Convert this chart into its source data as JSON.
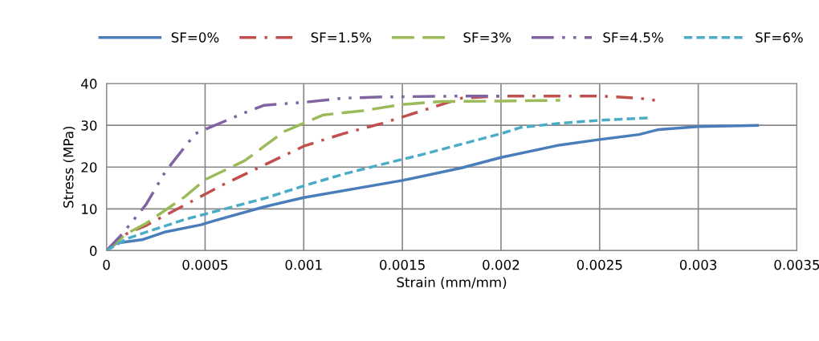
{
  "chart_data": {
    "type": "line",
    "xlabel": "Strain (mm/mm)",
    "ylabel": "Stress (MPa)",
    "xlim": [
      0,
      0.0035
    ],
    "xticks": [
      0,
      0.0005,
      0.001,
      0.0015,
      0.002,
      0.0025,
      0.003,
      0.0035
    ],
    "ylim": [
      0,
      40
    ],
    "yticks": [
      0,
      10,
      20,
      30,
      40
    ],
    "grid": true,
    "legend": "top",
    "marker": "none",
    "series": [
      {
        "name": "SF=0%",
        "color": "#4a7ebb",
        "line_style": "solid",
        "x": [
          0,
          5e-05,
          0.00018,
          0.0003,
          0.00048,
          0.00055,
          0.0008,
          0.001,
          0.0015,
          0.0018,
          0.002,
          0.0023,
          0.0025,
          0.0027,
          0.0028,
          0.003,
          0.0033
        ],
        "values": [
          0,
          1.8,
          2.6,
          4.5,
          6.2,
          7.2,
          10.5,
          12.7,
          16.8,
          19.8,
          22.3,
          25.3,
          26.6,
          27.8,
          29,
          29.7,
          30
        ]
      },
      {
        "name": "SF=1.5%",
        "color": "#c0504d",
        "line_style": "dashdot",
        "x": [
          0,
          0.0001,
          0.0002,
          0.0004,
          0.0006,
          0.0008,
          0.001,
          0.0012,
          0.0014,
          0.0016,
          0.0017,
          0.0018,
          0.002,
          0.0025,
          0.0027,
          0.00278
        ],
        "values": [
          0,
          4,
          6,
          11,
          16,
          20.5,
          25,
          28,
          30.5,
          33.5,
          35,
          36.5,
          37,
          37,
          36.5,
          36
        ]
      },
      {
        "name": "SF=3%",
        "color": "#9bbb59",
        "line_style": "longdash",
        "x": [
          0,
          0.0001,
          0.0002,
          0.0004,
          0.0005,
          0.0007,
          0.0008,
          0.0009,
          0.001,
          0.0011,
          0.0013,
          0.0015,
          0.0017,
          0.002,
          0.0023
        ],
        "values": [
          0,
          4,
          6.5,
          13,
          17,
          21.5,
          25,
          28.5,
          30.5,
          32.5,
          33.5,
          35,
          35.7,
          35.8,
          36
        ]
      },
      {
        "name": "SF=4.5%",
        "color": "#8064a2",
        "line_style": "dashdotdot",
        "x": [
          0,
          8e-05,
          0.0002,
          0.0003,
          0.0004,
          0.00045,
          0.0006,
          0.0007,
          0.0008,
          0.001,
          0.0012,
          0.0014,
          0.0018,
          0.002
        ],
        "values": [
          0,
          4,
          11,
          19,
          25,
          28,
          31,
          33,
          34.8,
          35.5,
          36.5,
          36.8,
          37,
          37
        ]
      },
      {
        "name": "SF=6%",
        "color": "#4bacc6",
        "line_style": "dashed",
        "x": [
          0,
          0.0001,
          0.0002,
          0.0004,
          0.0006,
          0.0008,
          0.001,
          0.0012,
          0.0014,
          0.0016,
          0.0018,
          0.002,
          0.0021,
          0.0023,
          0.0025,
          0.00275
        ],
        "values": [
          0,
          2.8,
          4.4,
          7.5,
          10,
          12.5,
          15.5,
          18.3,
          20.7,
          23,
          25.5,
          28,
          29.5,
          30.5,
          31.2,
          31.8
        ]
      }
    ]
  }
}
